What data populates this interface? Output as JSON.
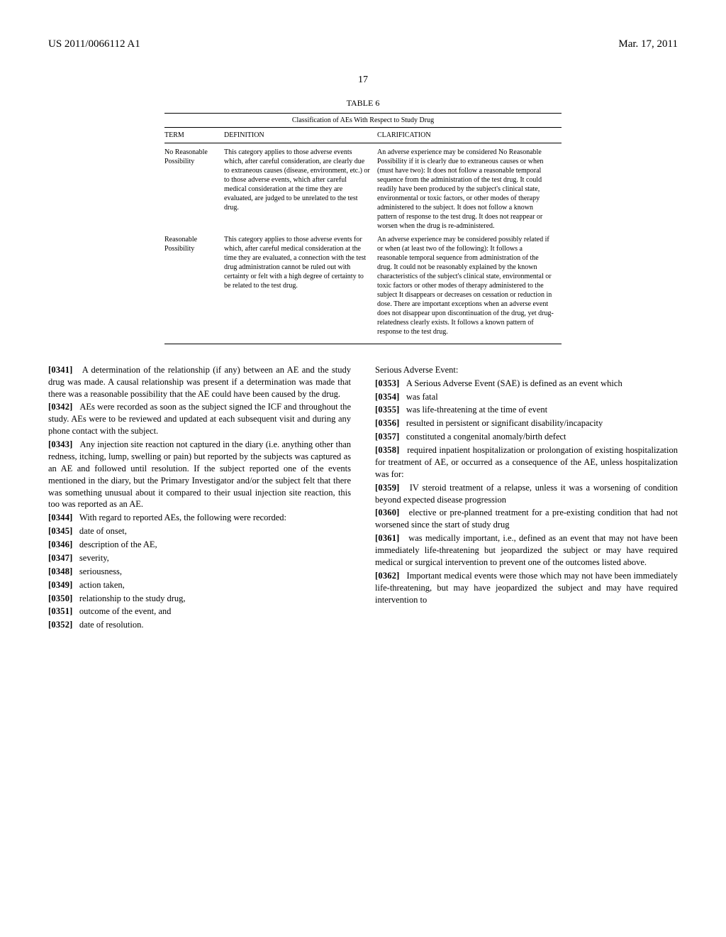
{
  "header": {
    "left": "US 2011/0066112 A1",
    "right": "Mar. 17, 2011"
  },
  "page_number": "17",
  "table6": {
    "title": "TABLE 6",
    "subtitle": "Classification of AEs With Respect to Study Drug",
    "columns": [
      "TERM",
      "DEFINITION",
      "CLARIFICATION"
    ],
    "rows": [
      {
        "term": "No Reasonable Possibility",
        "definition": "This category applies to those adverse events which, after careful consideration, are clearly due to extraneous causes (disease, environment, etc.) or to those adverse events, which after careful medical consideration at the time they are evaluated, are judged to be unrelated to the test drug.",
        "clarification": "An adverse experience may be considered No Reasonable Possibility if it is clearly due to extraneous causes or when (must have two): It does not follow a reasonable temporal sequence from the administration of the test drug. It could readily have been produced by the subject's clinical state, environmental or toxic factors, or other modes of therapy administered to the subject. It does not follow a known pattern of response to the test drug. It does not reappear or worsen when the drug is re-administered."
      },
      {
        "term": "Reasonable Possibility",
        "definition": "This category applies to those adverse events for which, after careful medical consideration at the time they are evaluated, a connection with the test drug administration cannot be ruled out with certainty or felt with a high degree of certainty to be related to the test drug.",
        "clarification": "An adverse experience may be considered possibly related if or when (at least two of the following): It follows a reasonable temporal sequence from administration of the drug. It could not be reasonably explained by the known characteristics of the subject's clinical state, environmental or toxic factors or other modes of therapy administered to the subject It disappears or decreases on cessation or reduction in dose. There are important exceptions when an adverse event does not disappear upon discontinuation of the drug, yet drug-relatedness clearly exists. It follows a known pattern of response to the test drug."
      }
    ]
  },
  "left_col": {
    "p0341": "A determination of the relationship (if any) between an AE and the study drug was made. A causal relationship was present if a determination was made that there was a reasonable possibility that the AE could have been caused by the drug.",
    "p0342": "AEs were recorded as soon as the subject signed the ICF and throughout the study. AEs were to be reviewed and updated at each subsequent visit and during any phone contact with the subject.",
    "p0343": "Any injection site reaction not captured in the diary (i.e. anything other than redness, itching, lump, swelling or pain) but reported by the subjects was captured as an AE and followed until resolution. If the subject reported one of the events mentioned in the diary, but the Primary Investigator and/or the subject felt that there was something unusual about it compared to their usual injection site reaction, this too was reported as an AE.",
    "p0344": "With regard to reported AEs, the following were recorded:",
    "p0345": "date of onset,",
    "p0346": "description of the AE,",
    "p0347": "severity,",
    "p0348": "seriousness,",
    "p0349": "action taken,",
    "p0350": "relationship to the study drug,",
    "p0351": "outcome of the event, and",
    "p0352": "date of resolution."
  },
  "right_col": {
    "sae_hdr": "Serious Adverse Event:",
    "p0353": "A Serious Adverse Event (SAE) is defined as an event which",
    "p0354": "was fatal",
    "p0355": "was life-threatening at the time of event",
    "p0356": "resulted in persistent or significant disability/incapacity",
    "p0357": "constituted a congenital anomaly/birth defect",
    "p0358": "required inpatient hospitalization or prolongation of existing hospitalization for treatment of AE, or occurred as a consequence of the AE, unless hospitalization was for:",
    "p0359": "IV steroid treatment of a relapse, unless it was a worsening of condition beyond expected disease progression",
    "p0360": "elective or pre-planned treatment for a pre-existing condition that had not worsened since the start of study drug",
    "p0361": "was medically important, i.e., defined as an event that may not have been immediately life-threatening but jeopardized the subject or may have required medical or surgical intervention to prevent one of the outcomes listed above.",
    "p0362": "Important medical events were those which may not have been immediately life-threatening, but may have jeopardized the subject and may have required intervention to"
  },
  "labels": {
    "n0341": "[0341]",
    "n0342": "[0342]",
    "n0343": "[0343]",
    "n0344": "[0344]",
    "n0345": "[0345]",
    "n0346": "[0346]",
    "n0347": "[0347]",
    "n0348": "[0348]",
    "n0349": "[0349]",
    "n0350": "[0350]",
    "n0351": "[0351]",
    "n0352": "[0352]",
    "n0353": "[0353]",
    "n0354": "[0354]",
    "n0355": "[0355]",
    "n0356": "[0356]",
    "n0357": "[0357]",
    "n0358": "[0358]",
    "n0359": "[0359]",
    "n0360": "[0360]",
    "n0361": "[0361]",
    "n0362": "[0362]"
  }
}
